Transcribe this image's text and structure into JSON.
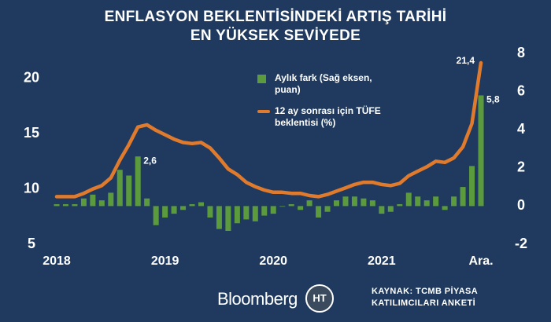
{
  "chart_data": {
    "type": "combo",
    "title": "ENFLASYON BEKLENTİSİNDEKİ ARTIŞ TARİHİ EN YÜKSEK SEVİYEDE",
    "categories": [
      "2018",
      null,
      null,
      null,
      null,
      null,
      null,
      null,
      null,
      null,
      null,
      null,
      "2019",
      null,
      null,
      null,
      null,
      null,
      null,
      null,
      null,
      null,
      null,
      null,
      "2020",
      null,
      null,
      null,
      null,
      null,
      null,
      null,
      null,
      null,
      null,
      null,
      "2021",
      null,
      null,
      null,
      null,
      null,
      null,
      null,
      null,
      null,
      null,
      "Ara."
    ],
    "series": [
      {
        "name": "Aylık fark (Sağ eksen, puan)",
        "type": "bar",
        "axis": "y2",
        "color": "#5c9a3e",
        "values": [
          0.1,
          0.1,
          0.1,
          0.4,
          0.6,
          0.3,
          0.7,
          1.9,
          1.6,
          2.6,
          0.4,
          -1.0,
          -0.6,
          -0.4,
          -0.2,
          0.1,
          0.2,
          -0.6,
          -1.2,
          -1.3,
          -0.9,
          -0.7,
          -0.8,
          -0.5,
          -0.4,
          0.0,
          0.1,
          -0.2,
          0.3,
          -0.6,
          -0.3,
          0.3,
          0.5,
          0.5,
          0.4,
          0.3,
          -0.4,
          -0.3,
          0.1,
          0.7,
          0.5,
          0.3,
          0.5,
          -0.2,
          0.5,
          1.0,
          2.1,
          5.8
        ],
        "value_labels": [
          null,
          null,
          null,
          null,
          null,
          null,
          null,
          null,
          null,
          "2,6",
          null,
          null,
          null,
          null,
          null,
          null,
          null,
          null,
          null,
          null,
          null,
          null,
          null,
          null,
          null,
          null,
          null,
          null,
          null,
          null,
          null,
          null,
          null,
          null,
          null,
          null,
          null,
          null,
          null,
          null,
          null,
          null,
          null,
          null,
          null,
          null,
          null,
          "5,8"
        ]
      },
      {
        "name": "12 ay sonrası için TÜFE beklentisi (%)",
        "type": "line",
        "axis": "y",
        "color": "#e07a2c",
        "values": [
          9.3,
          9.3,
          9.3,
          9.6,
          10.0,
          10.3,
          11.0,
          12.6,
          14.0,
          15.6,
          15.8,
          15.3,
          14.9,
          14.5,
          14.2,
          14.1,
          14.2,
          13.7,
          12.8,
          11.8,
          11.3,
          10.6,
          10.2,
          9.9,
          9.7,
          9.7,
          9.6,
          9.6,
          9.4,
          9.3,
          9.5,
          9.8,
          10.1,
          10.4,
          10.6,
          10.6,
          10.4,
          10.3,
          10.5,
          11.2,
          11.6,
          12.0,
          12.5,
          12.4,
          12.8,
          13.8,
          15.9,
          21.4
        ],
        "value_labels": [
          null,
          null,
          null,
          null,
          null,
          null,
          null,
          null,
          null,
          null,
          null,
          null,
          null,
          null,
          null,
          null,
          null,
          null,
          null,
          null,
          null,
          null,
          null,
          null,
          null,
          null,
          null,
          null,
          null,
          null,
          null,
          null,
          null,
          null,
          null,
          null,
          null,
          null,
          null,
          null,
          null,
          null,
          null,
          null,
          null,
          null,
          null,
          "21,4"
        ]
      }
    ],
    "ylim": [
      5,
      22.25
    ],
    "yticks": [
      5,
      10,
      15,
      20
    ],
    "y2lim": [
      -2,
      8
    ],
    "y2ticks": [
      -2,
      0,
      2,
      4,
      6,
      8
    ],
    "grid": false
  },
  "footer": {
    "brand": "Bloomberg",
    "logo": "HT",
    "source": "KAYNAK: TCMB PİYASA KATILIMCILARI ANKETİ"
  }
}
